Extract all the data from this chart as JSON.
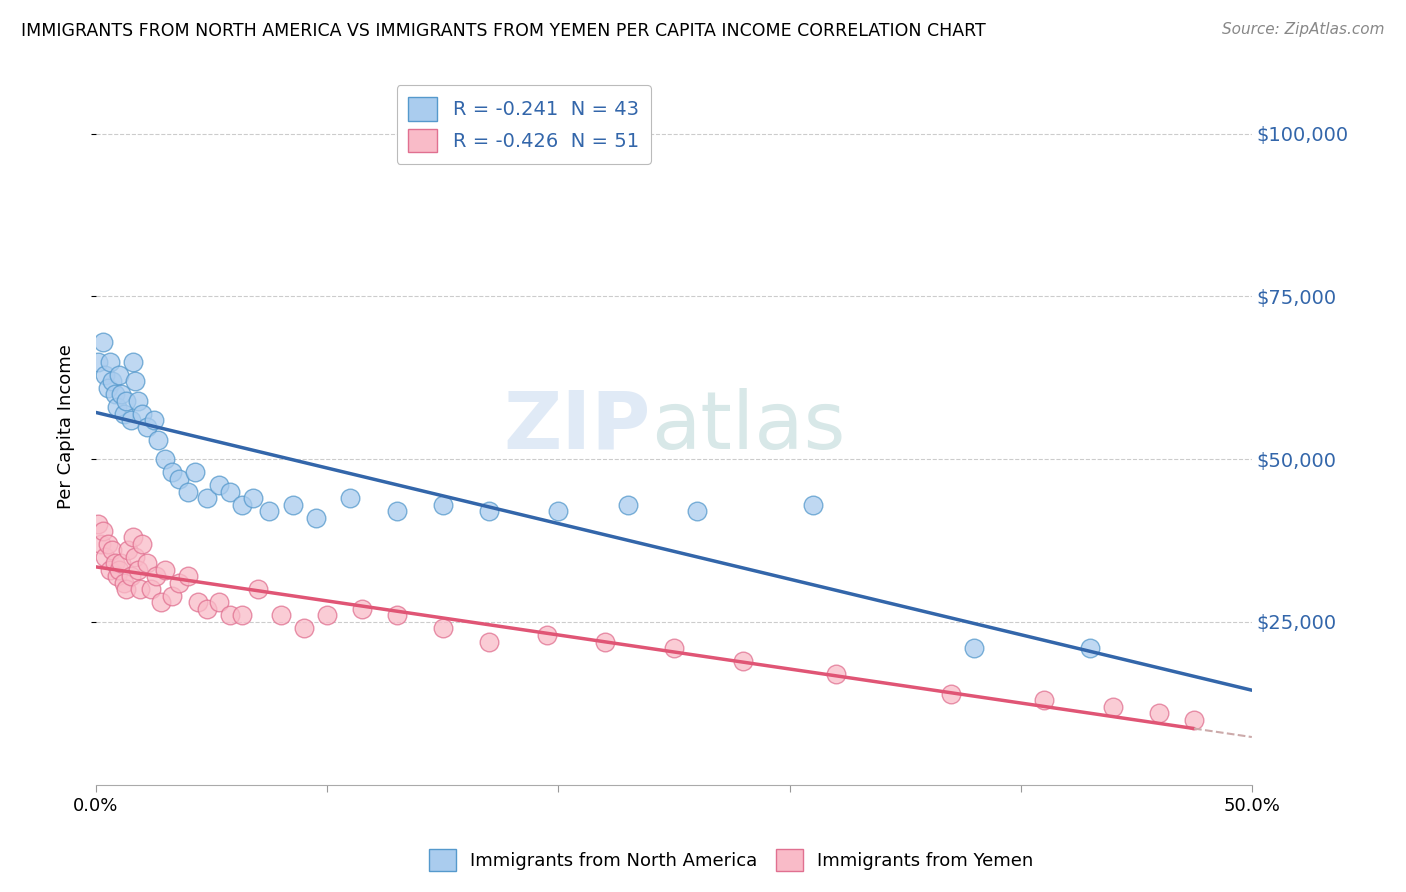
{
  "title": "IMMIGRANTS FROM NORTH AMERICA VS IMMIGRANTS FROM YEMEN PER CAPITA INCOME CORRELATION CHART",
  "source": "Source: ZipAtlas.com",
  "ylabel": "Per Capita Income",
  "ytick_labels": [
    "$25,000",
    "$50,000",
    "$75,000",
    "$100,000"
  ],
  "ytick_values": [
    25000,
    50000,
    75000,
    100000
  ],
  "xlim": [
    0.0,
    0.5
  ],
  "ylim": [
    0,
    110000
  ],
  "blue_R": -0.241,
  "blue_N": 43,
  "pink_R": -0.426,
  "pink_N": 51,
  "blue_color": "#aaccee",
  "pink_color": "#f9bbc8",
  "blue_edge_color": "#5599cc",
  "pink_edge_color": "#e07090",
  "blue_line_color": "#3366aa",
  "pink_line_color": "#e05575",
  "watermark_zip": "ZIP",
  "watermark_atlas": "atlas",
  "legend_label_blue": "Immigrants from North America",
  "legend_label_pink": "Immigrants from Yemen",
  "blue_scatter_x": [
    0.001,
    0.003,
    0.004,
    0.005,
    0.006,
    0.007,
    0.008,
    0.009,
    0.01,
    0.011,
    0.012,
    0.013,
    0.015,
    0.016,
    0.017,
    0.018,
    0.02,
    0.022,
    0.025,
    0.027,
    0.03,
    0.033,
    0.036,
    0.04,
    0.043,
    0.048,
    0.053,
    0.058,
    0.063,
    0.068,
    0.075,
    0.085,
    0.095,
    0.11,
    0.13,
    0.15,
    0.17,
    0.2,
    0.23,
    0.26,
    0.31,
    0.38,
    0.43
  ],
  "blue_scatter_y": [
    65000,
    68000,
    63000,
    61000,
    65000,
    62000,
    60000,
    58000,
    63000,
    60000,
    57000,
    59000,
    56000,
    65000,
    62000,
    59000,
    57000,
    55000,
    56000,
    53000,
    50000,
    48000,
    47000,
    45000,
    48000,
    44000,
    46000,
    45000,
    43000,
    44000,
    42000,
    43000,
    41000,
    44000,
    42000,
    43000,
    42000,
    42000,
    43000,
    42000,
    43000,
    21000,
    21000
  ],
  "pink_scatter_x": [
    0.001,
    0.002,
    0.003,
    0.004,
    0.005,
    0.006,
    0.007,
    0.008,
    0.009,
    0.01,
    0.011,
    0.012,
    0.013,
    0.014,
    0.015,
    0.016,
    0.017,
    0.018,
    0.019,
    0.02,
    0.022,
    0.024,
    0.026,
    0.028,
    0.03,
    0.033,
    0.036,
    0.04,
    0.044,
    0.048,
    0.053,
    0.058,
    0.063,
    0.07,
    0.08,
    0.09,
    0.1,
    0.115,
    0.13,
    0.15,
    0.17,
    0.195,
    0.22,
    0.25,
    0.28,
    0.32,
    0.37,
    0.41,
    0.44,
    0.46,
    0.475
  ],
  "pink_scatter_y": [
    40000,
    37000,
    39000,
    35000,
    37000,
    33000,
    36000,
    34000,
    32000,
    33000,
    34000,
    31000,
    30000,
    36000,
    32000,
    38000,
    35000,
    33000,
    30000,
    37000,
    34000,
    30000,
    32000,
    28000,
    33000,
    29000,
    31000,
    32000,
    28000,
    27000,
    28000,
    26000,
    26000,
    30000,
    26000,
    24000,
    26000,
    27000,
    26000,
    24000,
    22000,
    23000,
    22000,
    21000,
    19000,
    17000,
    14000,
    13000,
    12000,
    11000,
    10000
  ]
}
